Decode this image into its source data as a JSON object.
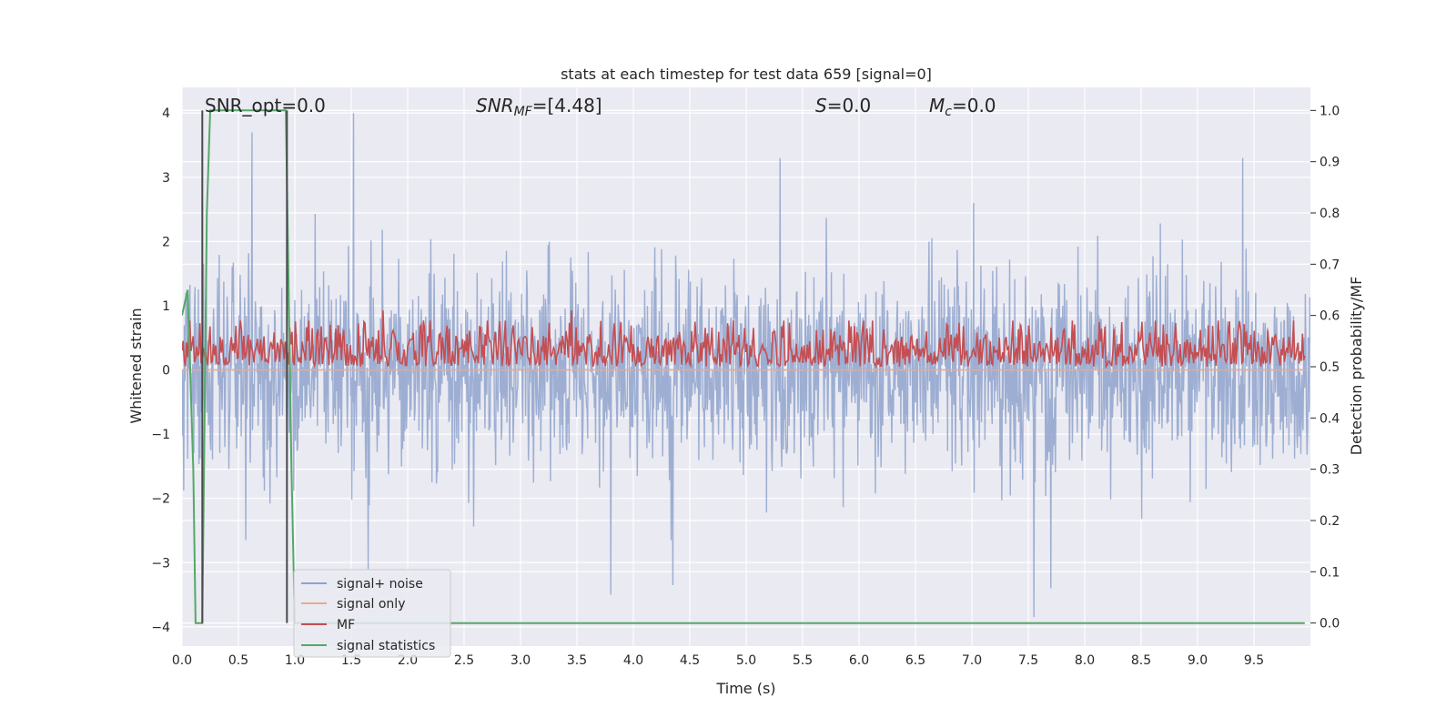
{
  "chart_data": {
    "type": "line",
    "title": "stats at each timestep for test data 659 [signal=0]",
    "xlabel": "Time (s)",
    "ylabel_left": "Whitened strain",
    "ylabel_right": "Detection probability/MF",
    "xlim": [
      0.0,
      10.0
    ],
    "ylim_left": [
      -4.3,
      4.4
    ],
    "ylim_right": [
      -0.045,
      1.045
    ],
    "x_ticks": [
      "0.0",
      "0.5",
      "1.0",
      "1.5",
      "2.0",
      "2.5",
      "3.0",
      "3.5",
      "4.0",
      "4.5",
      "5.0",
      "5.5",
      "6.0",
      "6.5",
      "7.0",
      "7.5",
      "8.0",
      "8.5",
      "9.0",
      "9.5"
    ],
    "y_left_ticks": [
      "4",
      "3",
      "2",
      "1",
      "0",
      "−1",
      "−2",
      "−3",
      "−4"
    ],
    "y_right_ticks": [
      "1.0",
      "0.9",
      "0.8",
      "0.7",
      "0.6",
      "0.5",
      "0.4",
      "0.3",
      "0.2",
      "0.1",
      "0.0"
    ],
    "grid": true,
    "legend_position": "lower-left",
    "annotations": {
      "snr_opt": "SNR_opt=0.0",
      "snr_mf_main": "SNR",
      "snr_mf_sub": "MF",
      "snr_mf_value": "=[4.48]",
      "s_main": "S",
      "s_value": "=0.0",
      "mc_main": "M",
      "mc_sub": "c",
      "mc_value": "=0.0"
    },
    "series": [
      {
        "name": "signal+ noise",
        "axis": "left",
        "color": "#8fa3cc",
        "note_shape": "dense noise, std ~0.75",
        "x_step": 0.01,
        "peaks": [
          {
            "x": 0.62,
            "y": 3.7
          },
          {
            "x": 1.52,
            "y": 4.0
          },
          {
            "x": 5.3,
            "y": 3.3
          },
          {
            "x": 9.4,
            "y": 3.3
          },
          {
            "x": 3.8,
            "y": -3.5
          },
          {
            "x": 4.35,
            "y": -3.35
          },
          {
            "x": 7.55,
            "y": -3.85
          },
          {
            "x": 7.7,
            "y": -3.4
          },
          {
            "x": 1.65,
            "y": -3.1
          }
        ]
      },
      {
        "name": "signal only",
        "axis": "left",
        "color": "#e8a990",
        "values_constant": 0.0
      },
      {
        "name": "MF",
        "axis": "right",
        "color": "#c44e52",
        "mean": 0.53,
        "peaks": [
          {
            "x": 1.78,
            "y": 0.61
          },
          {
            "x": 3.45,
            "y": 0.61
          }
        ]
      },
      {
        "name": "signal statistics",
        "axis": "right",
        "color": "#55a868",
        "x": [
          0.0,
          0.05,
          0.1,
          0.12,
          0.15,
          0.18,
          0.22,
          0.25,
          0.92,
          0.97,
          1.0,
          9.95
        ],
        "y": [
          0.6,
          0.65,
          0.3,
          0.0,
          0.0,
          0.0,
          0.8,
          1.0,
          1.0,
          0.3,
          0.0,
          0.0
        ]
      }
    ],
    "vertical_markers": [
      {
        "x": 0.18,
        "color": "#4a4a4a"
      },
      {
        "x": 0.93,
        "color": "#4a4a4a"
      }
    ]
  }
}
